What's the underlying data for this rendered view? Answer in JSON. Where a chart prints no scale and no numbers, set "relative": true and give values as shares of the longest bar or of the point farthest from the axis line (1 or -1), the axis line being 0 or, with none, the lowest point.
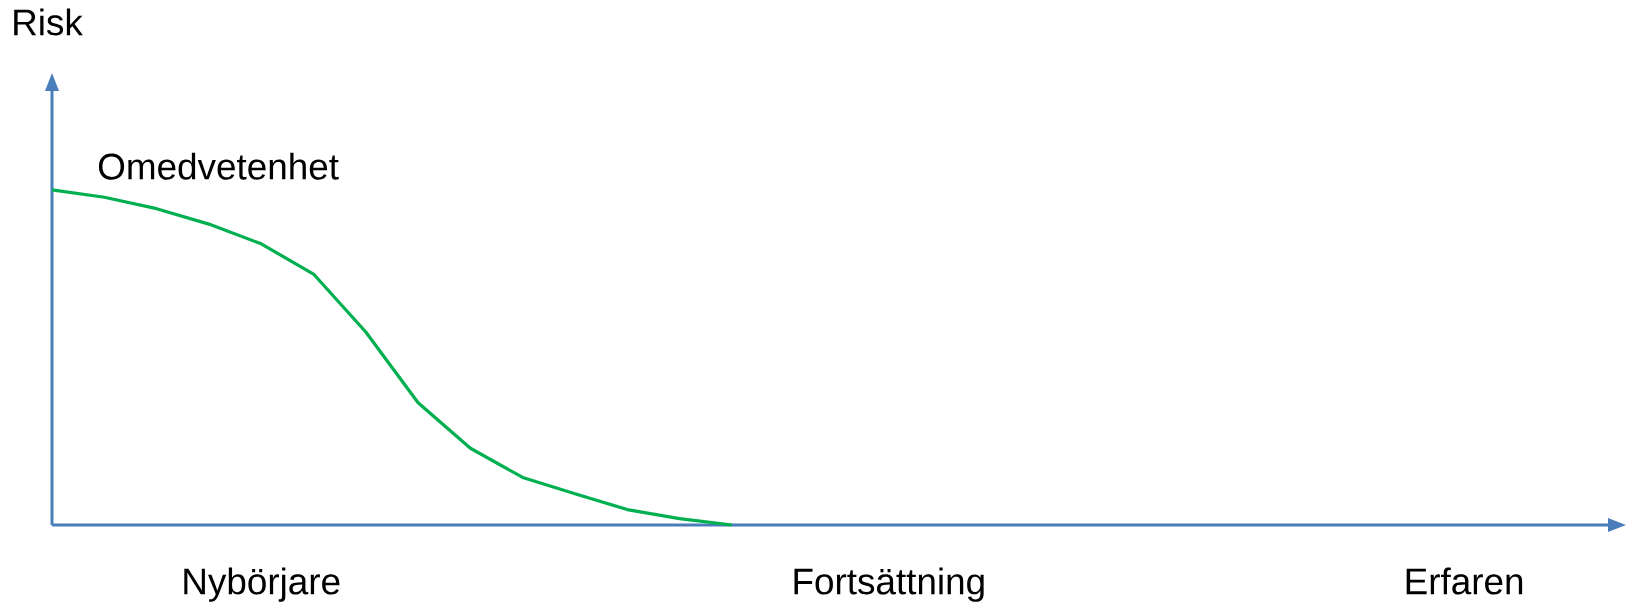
{
  "chart_data": {
    "type": "line",
    "relative": true,
    "ylabel": "Risk",
    "marker": "none",
    "categories": [
      null,
      null,
      null,
      null,
      "Nybörjare",
      null,
      null,
      null,
      null,
      null,
      null,
      null,
      null,
      null,
      null,
      null,
      "Fortsättning",
      null,
      null,
      null,
      null,
      null,
      null,
      null,
      null,
      null,
      null,
      "Erfaren"
    ],
    "series": [
      {
        "color": "#00b050",
        "values": [
          1.0,
          0.978,
          0.944,
          0.898,
          0.839,
          0.749,
          0.576,
          0.365,
          0.229,
          0.142,
          0.093,
          0.046,
          0.019,
          0,
          null,
          null,
          null,
          null,
          null,
          null,
          null,
          null,
          null,
          null,
          null,
          null,
          null,
          null
        ]
      }
    ],
    "annotations": [
      "Omedvetenhet"
    ]
  }
}
